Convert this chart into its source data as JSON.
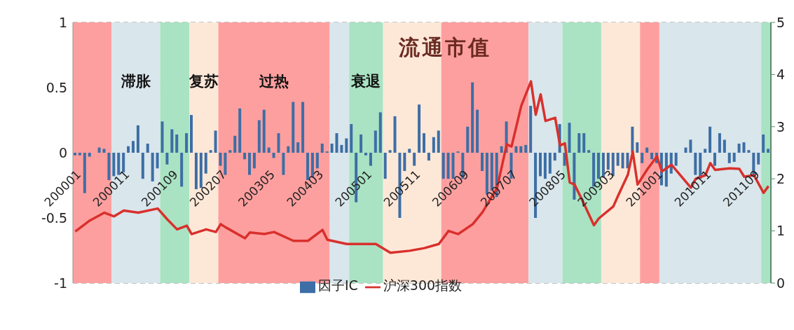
{
  "chart_data": {
    "type": "bar",
    "title": "流通市值",
    "legend": "bottom",
    "grid": "y",
    "ylim": [
      -1,
      1
    ],
    "yticks": [
      1,
      0.5,
      0,
      -0.5,
      -1
    ],
    "y2lim": [
      0,
      5
    ],
    "y2ticks": [
      0,
      1,
      2,
      3,
      4,
      5
    ],
    "xlim": [
      "1999-12-16",
      "2011-12-16"
    ],
    "xticks": [
      {
        "value": "2000-01",
        "label": "200001"
      },
      {
        "value": "2000-11",
        "label": "200011"
      },
      {
        "value": "2001-09",
        "label": "200109"
      },
      {
        "value": "2002-07",
        "label": "200207"
      },
      {
        "value": "2003-05",
        "label": "200305"
      },
      {
        "value": "2004-03",
        "label": "200403"
      },
      {
        "value": "2005-01",
        "label": "200501"
      },
      {
        "value": "2005-11",
        "label": "200511"
      },
      {
        "value": "2006-09",
        "label": "200609"
      },
      {
        "value": "2007-07",
        "label": "200707"
      },
      {
        "value": "2008-05",
        "label": "200805"
      },
      {
        "value": "2009-03",
        "label": "200903"
      },
      {
        "value": "2010-01",
        "label": "201001"
      },
      {
        "value": "2010-11",
        "label": "201011"
      },
      {
        "value": "2011-09",
        "label": "201109"
      }
    ],
    "x": [
      "2000-01",
      "2000-02",
      "2000-03",
      "2000-04",
      "2000-05",
      "2000-06",
      "2000-07",
      "2000-08",
      "2000-09",
      "2000-10",
      "2000-11",
      "2000-12",
      "2001-01",
      "2001-02",
      "2001-03",
      "2001-04",
      "2001-05",
      "2001-06",
      "2001-07",
      "2001-08",
      "2001-09",
      "2001-10",
      "2001-11",
      "2001-12",
      "2002-01",
      "2002-02",
      "2002-03",
      "2002-04",
      "2002-05",
      "2002-06",
      "2002-07",
      "2002-08",
      "2002-09",
      "2002-10",
      "2002-11",
      "2002-12",
      "2003-01",
      "2003-02",
      "2003-03",
      "2003-04",
      "2003-05",
      "2003-06",
      "2003-07",
      "2003-08",
      "2003-09",
      "2003-10",
      "2003-11",
      "2003-12",
      "2004-01",
      "2004-02",
      "2004-03",
      "2004-04",
      "2004-05",
      "2004-06",
      "2004-07",
      "2004-08",
      "2004-09",
      "2004-10",
      "2004-11",
      "2004-12",
      "2005-01",
      "2005-02",
      "2005-03",
      "2005-04",
      "2005-05",
      "2005-06",
      "2005-07",
      "2005-08",
      "2005-09",
      "2005-10",
      "2005-11",
      "2005-12",
      "2006-01",
      "2006-02",
      "2006-03",
      "2006-04",
      "2006-05",
      "2006-06",
      "2006-07",
      "2006-08",
      "2006-09",
      "2006-10",
      "2006-11",
      "2006-12",
      "2007-01",
      "2007-02",
      "2007-03",
      "2007-04",
      "2007-05",
      "2007-06",
      "2007-07",
      "2007-08",
      "2007-09",
      "2007-10",
      "2007-11",
      "2007-12",
      "2008-01",
      "2008-02",
      "2008-03",
      "2008-04",
      "2008-05",
      "2008-06",
      "2008-07",
      "2008-08",
      "2008-09",
      "2008-10",
      "2008-11",
      "2008-12",
      "2009-01",
      "2009-02",
      "2009-03",
      "2009-04",
      "2009-05",
      "2009-06",
      "2009-07",
      "2009-08",
      "2009-09",
      "2009-10",
      "2009-11",
      "2009-12",
      "2010-01",
      "2010-02",
      "2010-03",
      "2010-04",
      "2010-05",
      "2010-06",
      "2010-07",
      "2010-08",
      "2010-09",
      "2010-10",
      "2010-11",
      "2010-12",
      "2011-01",
      "2011-02",
      "2011-03",
      "2011-04",
      "2011-05",
      "2011-06",
      "2011-07",
      "2011-08",
      "2011-09",
      "2011-10",
      "2011-11",
      "2011-12"
    ],
    "series": [
      {
        "name": "因子IC",
        "color": "#3d6ea5",
        "values": [
          -0.02,
          -0.02,
          -0.31,
          -0.03,
          0,
          0.04,
          0.03,
          -0.21,
          -0.18,
          -0.17,
          -0.15,
          0.05,
          0.09,
          0.21,
          -0.2,
          0.07,
          -0.22,
          -0.12,
          0.24,
          -0.09,
          0.18,
          0.14,
          -0.26,
          0.15,
          0.29,
          -0.28,
          -0.27,
          -0.16,
          0.02,
          0.17,
          -0.1,
          -0.17,
          0.02,
          0.13,
          0.34,
          -0.05,
          -0.17,
          -0.12,
          0.25,
          0.33,
          0.04,
          -0.04,
          0.15,
          -0.17,
          0.05,
          0.39,
          0.08,
          0.39,
          -0.21,
          -0.19,
          -0.12,
          0.07,
          0.01,
          0.07,
          0.15,
          0.06,
          0.11,
          0.22,
          -0.38,
          0.14,
          -0.02,
          -0.1,
          0.17,
          0.31,
          -0.2,
          0.02,
          0.28,
          -0.5,
          -0.14,
          0.03,
          -0.1,
          0.37,
          0.15,
          -0.06,
          0.12,
          0.17,
          -0.2,
          -0.2,
          -0.2,
          0.01,
          -0.2,
          0.2,
          0.54,
          0.33,
          -0.14,
          -0.32,
          -0.29,
          -0.34,
          0.05,
          0.24,
          -0.2,
          0.05,
          0.05,
          0.06,
          0.36,
          -0.5,
          -0.18,
          -0.2,
          -0.16,
          -0.06,
          0.22,
          -0.1,
          0.23,
          -0.36,
          0.15,
          0.15,
          0.02,
          -0.26,
          -0.2,
          -0.19,
          -0.13,
          -0.18,
          -0.1,
          -0.12,
          -0.12,
          0.2,
          0.08,
          -0.08,
          0.04,
          -0.05,
          -0.08,
          -0.25,
          -0.26,
          -0.16,
          -0.1,
          0,
          0.04,
          0.1,
          -0.17,
          -0.2,
          0.03,
          0.2,
          -0.1,
          0.15,
          0.1,
          -0.08,
          -0.07,
          0.07,
          0.08,
          0.02,
          -0.17,
          -0.09,
          0.14,
          0.03
        ]
      },
      {
        "name": "沪深300指数",
        "type": "line",
        "axis": "y2",
        "color": "#d9302c",
        "x": [
          "2000-01",
          "2000-04",
          "2000-07",
          "2000-09",
          "2000-11",
          "2001-02",
          "2001-06",
          "2001-08",
          "2001-10",
          "2001-12",
          "2002-01",
          "2002-04",
          "2002-06",
          "2002-07",
          "2002-08",
          "2002-12",
          "2003-01",
          "2003-04",
          "2003-06",
          "2003-10",
          "2004-01",
          "2004-04",
          "2004-05",
          "2004-09",
          "2005-03",
          "2005-06",
          "2005-10",
          "2006-01",
          "2006-04",
          "2006-06",
          "2006-08",
          "2006-11",
          "2007-01",
          "2007-04",
          "2007-06",
          "2007-07",
          "2007-09",
          "2007-11",
          "2007-12",
          "2008-01",
          "2008-02",
          "2008-04",
          "2008-05",
          "2008-06",
          "2008-07",
          "2008-08",
          "2008-10",
          "2008-12",
          "2009-01",
          "2009-04",
          "2009-05",
          "2009-07",
          "2009-08",
          "2009-09",
          "2009-11",
          "2010-01",
          "2010-02",
          "2010-04",
          "2010-08",
          "2010-09",
          "2010-11",
          "2010-12",
          "2011-01",
          "2011-03",
          "2011-04",
          "2011-06",
          "2011-07",
          "2011-09",
          "2011-11",
          "2011-12"
        ],
        "values": [
          0.99,
          1.2,
          1.35,
          1.28,
          1.39,
          1.35,
          1.43,
          1.22,
          1.03,
          1.1,
          0.94,
          1.03,
          0.98,
          1.13,
          1.07,
          0.86,
          0.97,
          0.94,
          0.98,
          0.81,
          0.81,
          1.02,
          0.83,
          0.75,
          0.75,
          0.58,
          0.62,
          0.67,
          0.75,
          1.0,
          0.94,
          1.13,
          1.36,
          1.82,
          2.66,
          2.62,
          3.4,
          3.87,
          3.23,
          3.62,
          3.11,
          3.17,
          2.64,
          2.68,
          1.93,
          1.89,
          1.51,
          1.11,
          1.24,
          1.47,
          1.68,
          2.08,
          2.52,
          1.89,
          2.18,
          2.43,
          2.14,
          2.27,
          1.83,
          2.0,
          2.07,
          2.3,
          2.17,
          2.19,
          2.2,
          2.19,
          2.04,
          2.07,
          1.73,
          1.86
        ]
      }
    ],
    "bands": [
      {
        "axis": "x",
        "from": "1999-12-16",
        "to": "2000-08-16",
        "color": "#fe9f9f"
      },
      {
        "axis": "x",
        "from": "2000-08-16",
        "to": "2001-06-16",
        "color": "#d9e6ec",
        "label": "滞胀"
      },
      {
        "axis": "x",
        "from": "2001-06-16",
        "to": "2001-12-16",
        "color": "#a9e3c3"
      },
      {
        "axis": "x",
        "from": "2001-12-16",
        "to": "2002-06-16",
        "color": "#fde8d8",
        "label": "复苏"
      },
      {
        "axis": "x",
        "from": "2002-06-16",
        "to": "2004-05-16",
        "color": "#fe9f9f",
        "label": "过热"
      },
      {
        "axis": "x",
        "from": "2004-05-16",
        "to": "2004-09-16",
        "color": "#d9e6ec"
      },
      {
        "axis": "x",
        "from": "2004-09-16",
        "to": "2005-04-16",
        "color": "#a9e3c3",
        "label": "衰退"
      },
      {
        "axis": "x",
        "from": "2005-04-16",
        "to": "2006-04-16",
        "color": "#fde8d8"
      },
      {
        "axis": "x",
        "from": "2006-04-16",
        "to": "2007-10-16",
        "color": "#fe9f9f"
      },
      {
        "axis": "x",
        "from": "2007-10-16",
        "to": "2008-05-16",
        "color": "#d9e6ec"
      },
      {
        "axis": "x",
        "from": "2008-05-16",
        "to": "2009-01-16",
        "color": "#a9e3c3"
      },
      {
        "axis": "x",
        "from": "2009-01-16",
        "to": "2009-09-16",
        "color": "#fde8d8"
      },
      {
        "axis": "x",
        "from": "2009-09-16",
        "to": "2010-01-16",
        "color": "#fe9f9f"
      },
      {
        "axis": "x",
        "from": "2010-01-16",
        "to": "2011-10-16",
        "color": "#d9e6ec"
      },
      {
        "axis": "x",
        "from": "2011-10-16",
        "to": "2011-12-16",
        "color": "#a9e3c3"
      }
    ]
  }
}
